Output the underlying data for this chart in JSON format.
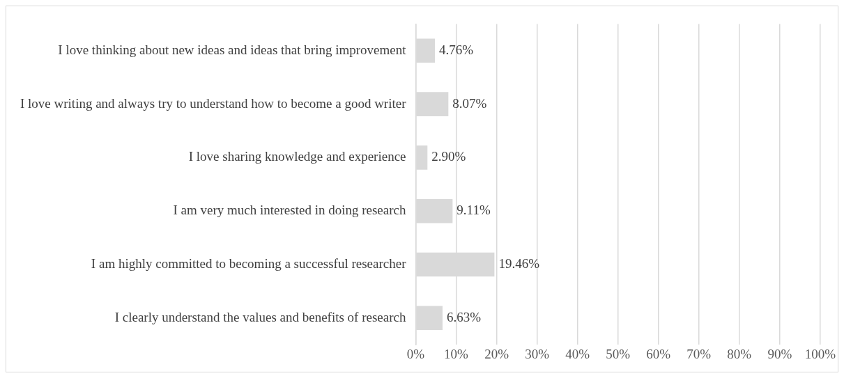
{
  "chart_data": {
    "type": "bar",
    "orientation": "horizontal",
    "categories": [
      "I love thinking about new ideas and ideas that bring improvement",
      "I love writing and always try to understand how to become a good writer",
      "I love sharing knowledge and experience",
      "I am very much interested in doing research",
      "I am highly committed to becoming a successful researcher",
      "I clearly understand the values and benefits of research"
    ],
    "values": [
      4.76,
      8.07,
      2.9,
      9.11,
      19.46,
      6.63
    ],
    "value_labels": [
      "4.76%",
      "8.07%",
      "2.90%",
      "9.11%",
      "19.46%",
      "6.63%"
    ],
    "color": "#d9d9d9",
    "xlim": [
      0,
      100
    ],
    "xticks": [
      {
        "value": 0,
        "label": "0%"
      },
      {
        "value": 10,
        "label": "10%"
      },
      {
        "value": 20,
        "label": "20%"
      },
      {
        "value": 30,
        "label": "30%"
      },
      {
        "value": 40,
        "label": "40%"
      },
      {
        "value": 50,
        "label": "50%"
      },
      {
        "value": 60,
        "label": "60%"
      },
      {
        "value": 70,
        "label": "70%"
      },
      {
        "value": 80,
        "label": "80%"
      },
      {
        "value": 90,
        "label": "90%"
      },
      {
        "value": 100,
        "label": "100%"
      }
    ],
    "grid": "x",
    "legend": false
  }
}
